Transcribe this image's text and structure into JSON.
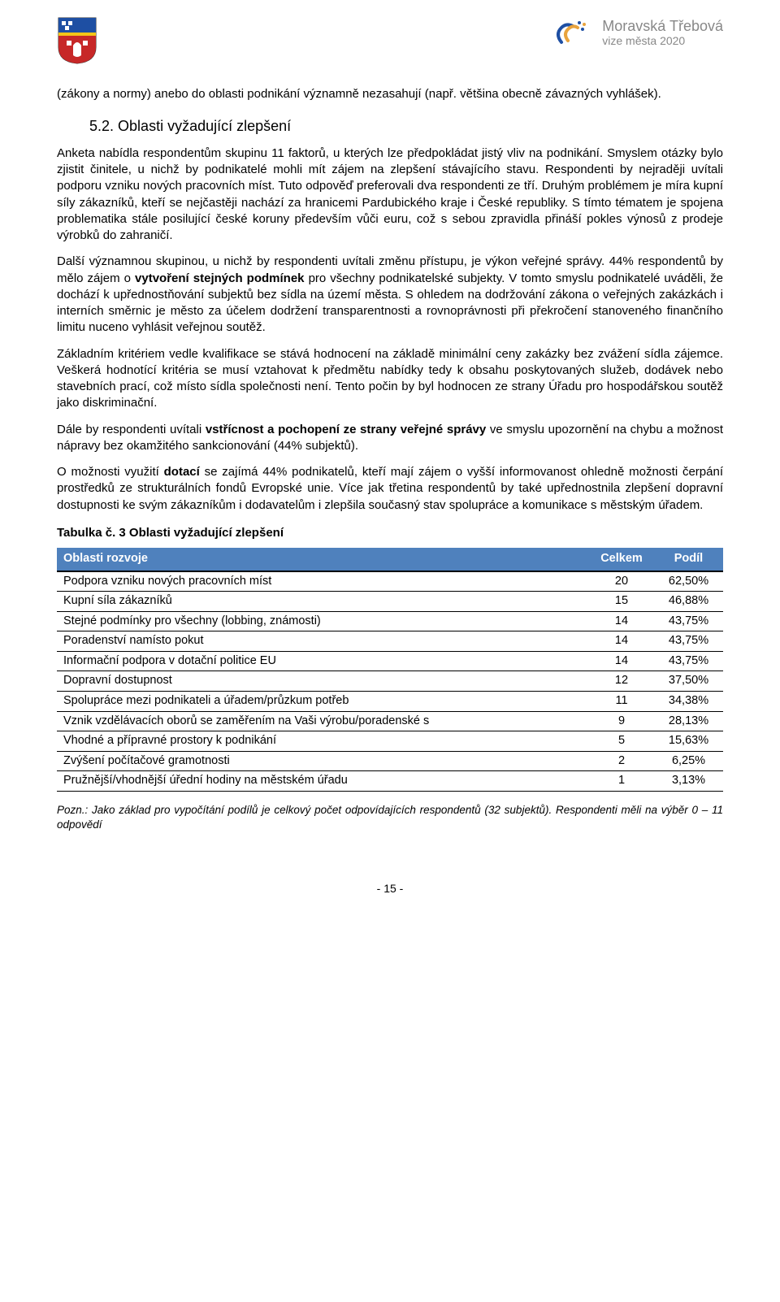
{
  "header": {
    "brand_top": "Moravská Třebová",
    "brand_sub": "vize města 2020"
  },
  "intro": "(zákony a normy) anebo do oblasti podnikání významně nezasahují (např. většina obecně závazných vyhlášek).",
  "section_num": "5.2.",
  "section_title": "Oblasti vyžadující zlepšení",
  "p1": "Anketa nabídla respondentům skupinu 11 faktorů, u kterých lze předpokládat jistý vliv na podnikání. Smyslem otázky bylo zjistit činitele, u nichž by podnikatelé mohli mít zájem na zlepšení stávajícího stavu. Respondenti by nejraději uvítali podporu vzniku nových pracovních míst. Tuto odpověď preferovali dva respondenti ze tří. Druhým problémem je míra kupní síly zákazníků, kteří se nejčastěji nachází za hranicemi Pardubického kraje i České republiky. S tímto tématem je spojena problematika stále posilující české koruny především vůči euru, což s sebou zpravidla přináší pokles výnosů z prodeje výrobků do zahraničí.",
  "p2_pre": "Další významnou skupinou, u nichž by respondenti uvítali změnu přístupu, je výkon veřejné správy. 44% respondentů by mělo zájem o ",
  "p2_bold": "vytvoření stejných podmínek",
  "p2_post": " pro všechny podnikatelské subjekty. V tomto smyslu podnikatelé uváděli, že dochází k upřednostňování subjektů bez sídla na území města. S ohledem na dodržování zákona o veřejných zakázkách i interních směrnic je město za účelem dodržení transparentnosti a rovnoprávnosti při překročení stanoveného finančního limitu nuceno vyhlásit veřejnou soutěž.",
  "p3": "Základním kritériem vedle kvalifikace se stává hodnocení na základě minimální ceny zakázky bez zvážení sídla zájemce. Veškerá hodnotící kritéria se musí vztahovat k předmětu nabídky tedy k obsahu poskytovaných služeb, dodávek nebo stavebních prací, což místo sídla společnosti není. Tento počin by byl hodnocen ze strany Úřadu pro hospodářskou soutěž jako diskriminační.",
  "p4_pre": "Dále by respondenti uvítali ",
  "p4_bold": "vstřícnost a pochopení ze strany veřejné správy",
  "p4_post": " ve smyslu upozornění na chybu a možnost nápravy bez okamžitého sankcionování (44% subjektů).",
  "p5_pre": "O možnosti využití ",
  "p5_bold": "dotací",
  "p5_post": " se zajímá 44% podnikatelů, kteří mají zájem o vyšší informovanost ohledně možnosti čerpání prostředků ze strukturálních fondů Evropské unie. Více jak třetina respondentů by také upřednostnila zlepšení dopravní dostupnosti ke svým zákazníkům i dodavatelům i zlepšila současný stav spolupráce a komunikace s městským úřadem.",
  "table_title": "Tabulka č. 3 Oblasti vyžadující zlepšení",
  "table": {
    "columns": [
      "Oblasti rozvoje",
      "Celkem",
      "Podíl"
    ],
    "header_bg": "#4f81bd",
    "header_fg": "#ffffff",
    "rows": [
      [
        "Podpora vzniku nových pracovních míst",
        "20",
        "62,50%"
      ],
      [
        "Kupní síla zákazníků",
        "15",
        "46,88%"
      ],
      [
        "Stejné podmínky pro všechny (lobbing, známosti)",
        "14",
        "43,75%"
      ],
      [
        "Poradenství namísto pokut",
        "14",
        "43,75%"
      ],
      [
        "Informační podpora v dotační politice EU",
        "14",
        "43,75%"
      ],
      [
        "Dopravní dostupnost",
        "12",
        "37,50%"
      ],
      [
        "Spolupráce mezi podnikateli a úřadem/průzkum potřeb",
        "11",
        "34,38%"
      ],
      [
        "Vznik vzdělávacích oborů se zaměřením na Vaši výrobu/poradenské s",
        "9",
        "28,13%"
      ],
      [
        "Vhodné a přípravné prostory k podnikání",
        "5",
        "15,63%"
      ],
      [
        "Zvýšení počítačové gramotnosti",
        "2",
        "6,25%"
      ],
      [
        "Pružnější/vhodnější úřední hodiny na městském úřadu",
        "1",
        "3,13%"
      ]
    ]
  },
  "note": "Pozn.: Jako základ pro vypočítání podílů je celkový počet odpovídajících respondentů (32 subjektů). Respondenti měli na výběr 0 – 11 odpovědí",
  "page_num": "- 15 -"
}
